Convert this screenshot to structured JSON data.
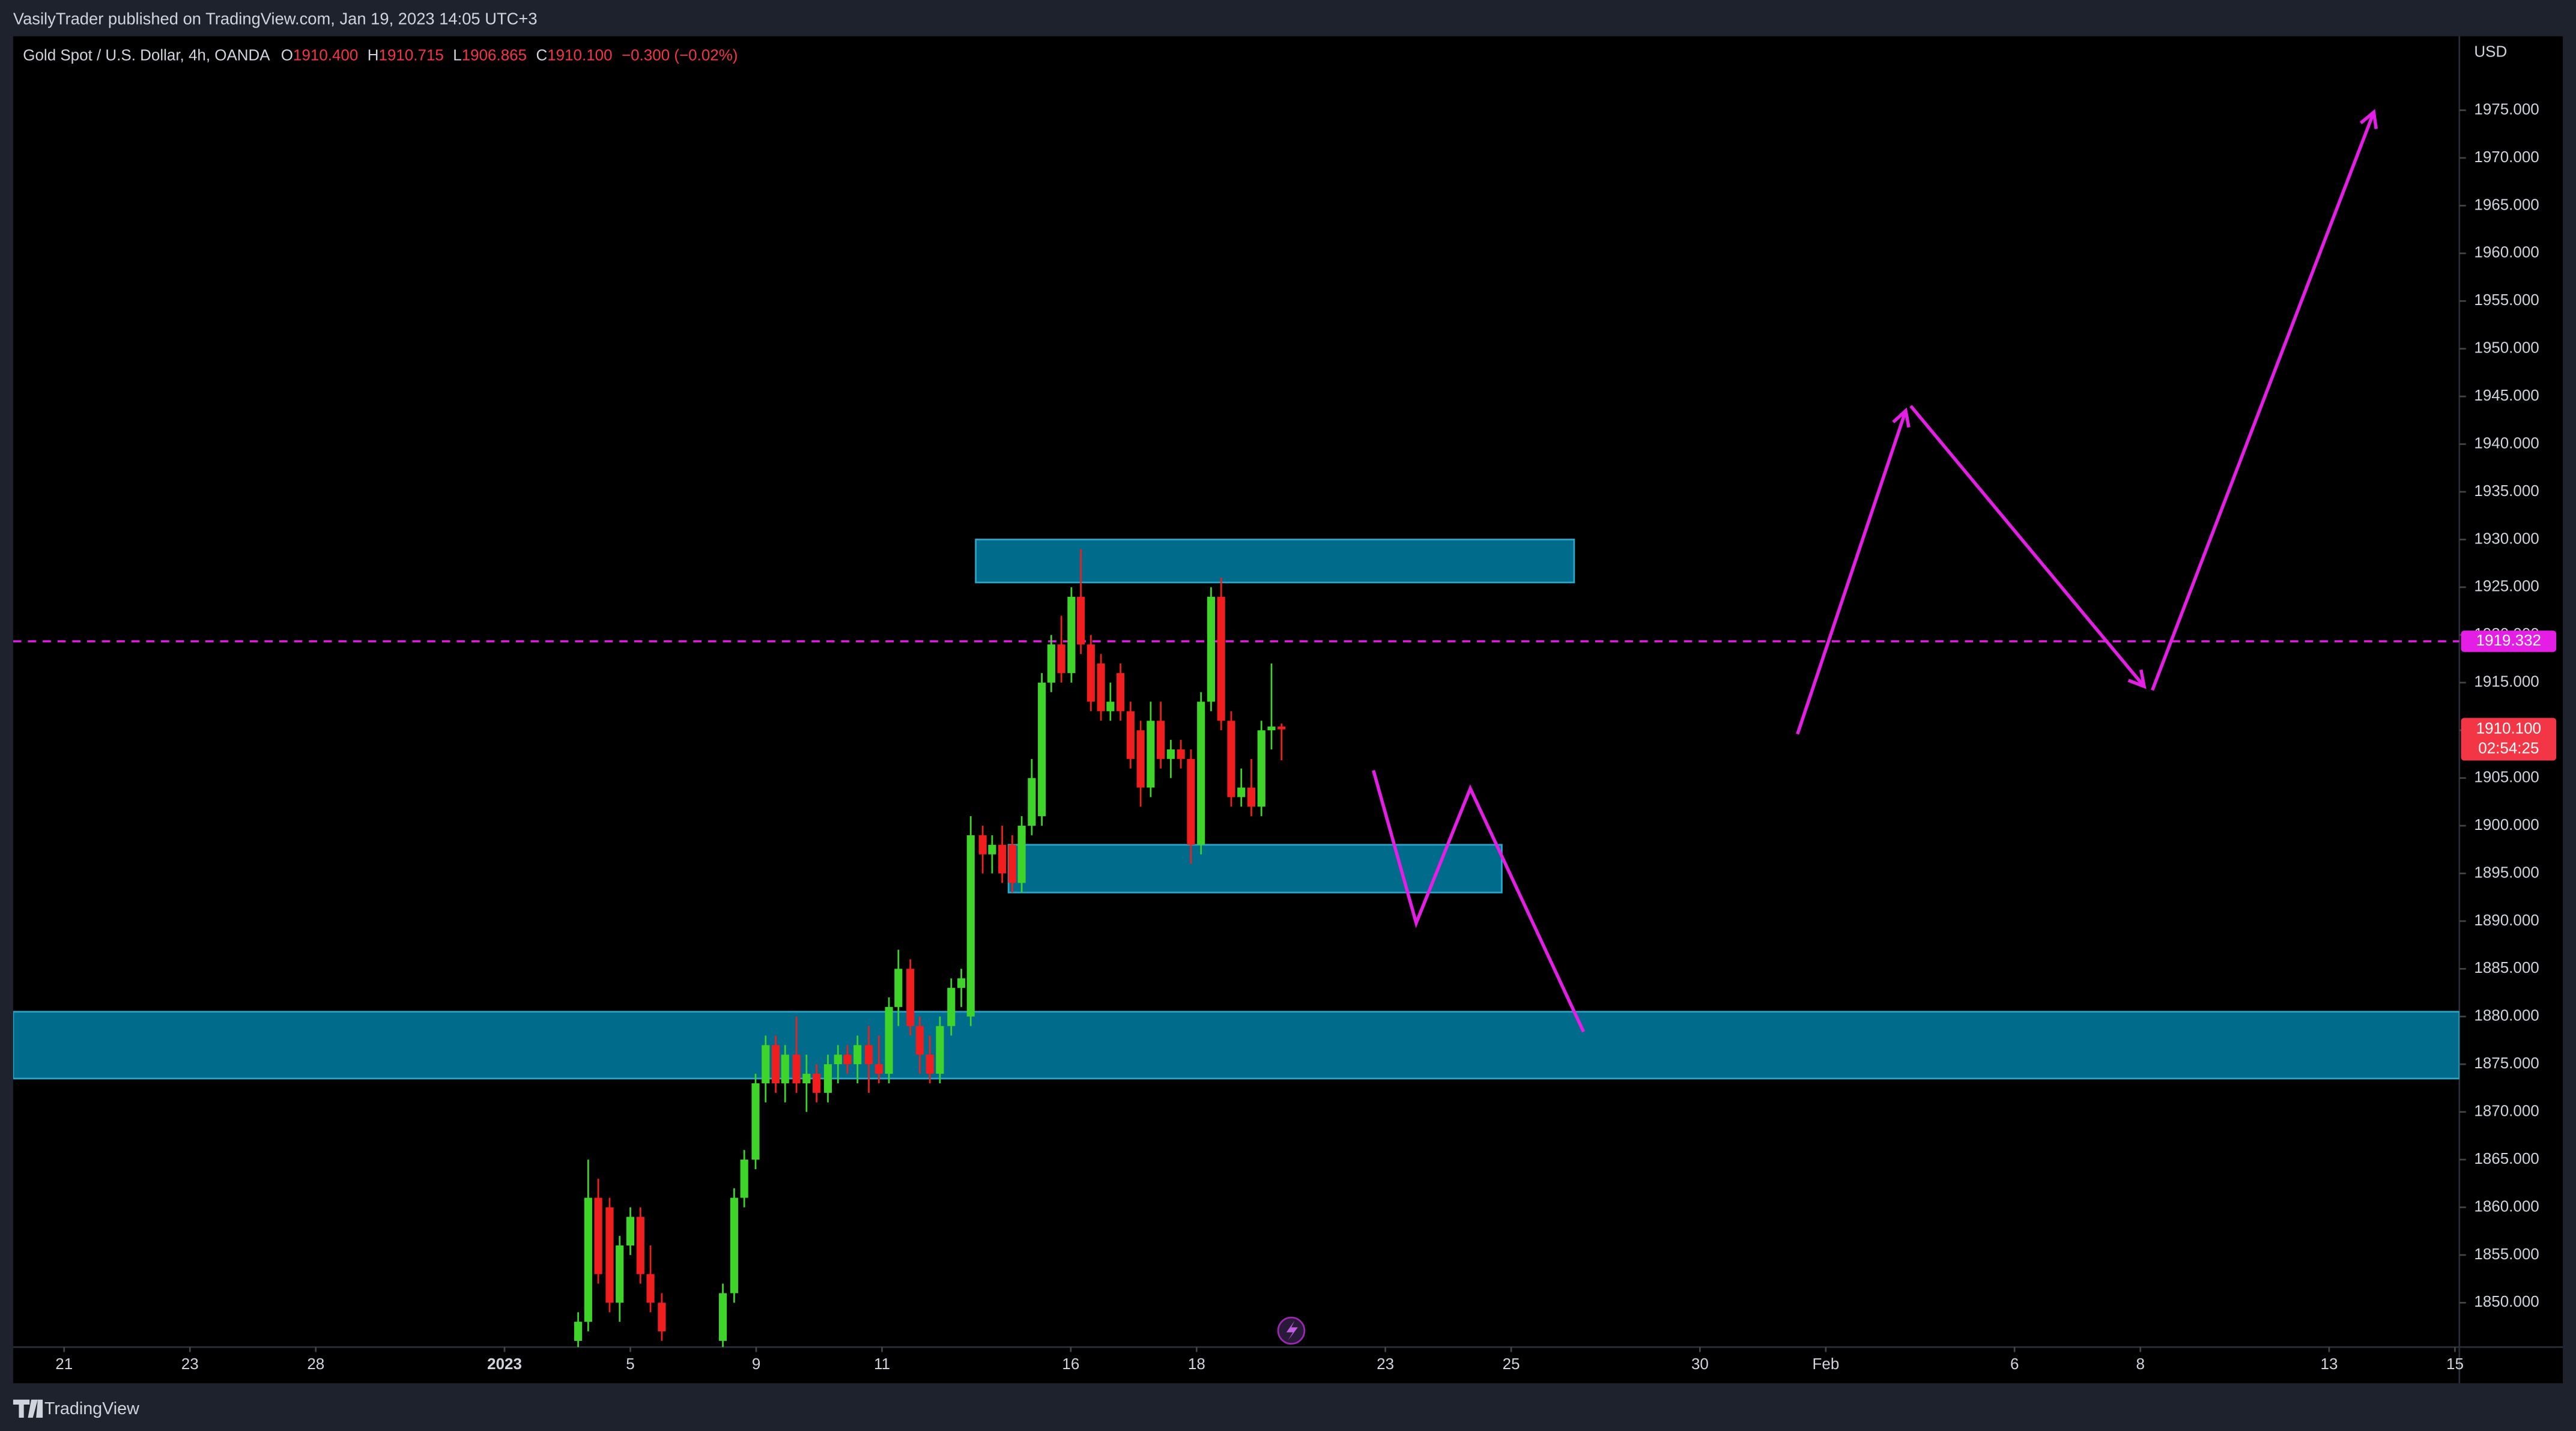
{
  "header": {
    "published": "VasilyTrader published on TradingView.com, Jan 19, 2023 14:05 UTC+3",
    "footer": "TradingView"
  },
  "chart_data": {
    "type": "candlestick",
    "symbol": "Gold Spot / U.S. Dollar, 4h, OANDA",
    "ohlc_legend": [
      {
        "key": "O",
        "value": "1910.400"
      },
      {
        "key": "H",
        "value": "1910.715"
      },
      {
        "key": "L",
        "value": "1906.865"
      },
      {
        "key": "C",
        "value": "1910.100"
      }
    ],
    "change": "−0.300 (−0.02%)",
    "currency": "USD",
    "up_color": "#3fd42a",
    "down_color": "#f01e1e",
    "xlim": [
      -0.81,
      38.07
    ],
    "xticks": [
      {
        "value": 0,
        "label": "21"
      },
      {
        "value": 2,
        "label": "23"
      },
      {
        "value": 4,
        "label": "28"
      },
      {
        "value": 7,
        "label": "2023"
      },
      {
        "value": 9,
        "label": "5"
      },
      {
        "value": 11,
        "label": "9"
      },
      {
        "value": 13,
        "label": "11"
      },
      {
        "value": 16,
        "label": "16"
      },
      {
        "value": 18,
        "label": "18"
      },
      {
        "value": 21,
        "label": "23"
      },
      {
        "value": 23,
        "label": "25"
      },
      {
        "value": 26,
        "label": "30"
      },
      {
        "value": 28,
        "label": "Feb"
      },
      {
        "value": 31,
        "label": "6"
      },
      {
        "value": 33,
        "label": "8"
      },
      {
        "value": 36,
        "label": "13"
      },
      {
        "value": 38,
        "label": "15"
      }
    ],
    "ylim": [
      1845.35,
      1982.75
    ],
    "yticks": [
      {
        "value": 1850,
        "label": "1850.000"
      },
      {
        "value": 1855,
        "label": "1855.000"
      },
      {
        "value": 1860,
        "label": "1860.000"
      },
      {
        "value": 1865,
        "label": "1865.000"
      },
      {
        "value": 1870,
        "label": "1870.000"
      },
      {
        "value": 1875,
        "label": "1875.000"
      },
      {
        "value": 1880,
        "label": "1880.000"
      },
      {
        "value": 1885,
        "label": "1885.000"
      },
      {
        "value": 1890,
        "label": "1890.000"
      },
      {
        "value": 1895,
        "label": "1895.000"
      },
      {
        "value": 1900,
        "label": "1900.000"
      },
      {
        "value": 1905,
        "label": "1905.000"
      },
      {
        "value": 1910,
        "label": "1910.000"
      },
      {
        "value": 1915,
        "label": "1915.000"
      },
      {
        "value": 1920,
        "label": "1920.000"
      },
      {
        "value": 1925,
        "label": "1925.000"
      },
      {
        "value": 1930,
        "label": "1930.000"
      },
      {
        "value": 1935,
        "label": "1935.000"
      },
      {
        "value": 1940,
        "label": "1940.000"
      },
      {
        "value": 1945,
        "label": "1945.000"
      },
      {
        "value": 1950,
        "label": "1950.000"
      },
      {
        "value": 1955,
        "label": "1955.000"
      },
      {
        "value": 1960,
        "label": "1960.000"
      },
      {
        "value": 1965,
        "label": "1965.000"
      },
      {
        "value": 1970,
        "label": "1970.000"
      },
      {
        "value": 1975,
        "label": "1975.000"
      }
    ],
    "x": [
      8.17,
      8.33,
      8.49,
      8.67,
      8.83,
      9.0,
      9.16,
      9.32,
      9.5,
      10.47,
      10.65,
      10.81,
      10.99,
      11.15,
      11.31,
      11.46,
      11.64,
      11.8,
      11.96,
      12.14,
      12.3,
      12.45,
      12.61,
      12.79,
      12.95,
      13.11,
      13.26,
      13.45,
      13.6,
      13.76,
      13.92,
      14.1,
      14.26,
      14.41,
      14.6,
      14.75,
      14.91,
      15.07,
      15.22,
      15.38,
      15.54,
      15.69,
      15.85,
      16.01,
      16.16,
      16.32,
      16.48,
      16.63,
      16.79,
      16.95,
      17.11,
      17.27,
      17.43,
      17.59,
      17.75,
      17.91,
      18.07,
      18.23,
      18.39,
      18.55,
      18.71,
      18.87,
      19.03,
      19.19,
      19.35
    ],
    "open": [
      1846,
      1848,
      1861,
      1860,
      1850,
      1856,
      1859,
      1853,
      1850,
      1846,
      1851,
      1861,
      1865,
      1873,
      1877,
      1873,
      1876,
      1873,
      1874,
      1872,
      1875,
      1876,
      1875,
      1877,
      1875,
      1874,
      1881,
      1885,
      1879,
      1876,
      1874,
      1879,
      1883,
      1880,
      1899,
      1897,
      1898,
      1898,
      1894,
      1900,
      1901,
      1915,
      1919,
      1916,
      1924,
      1919,
      1917,
      1912,
      1916,
      1912,
      1910,
      1904,
      1911,
      1907,
      1908,
      1907,
      1898,
      1913,
      1924,
      1911,
      1903,
      1904,
      1902,
      1910,
      1910.4
    ],
    "high": [
      1849,
      1865,
      1863,
      1861,
      1857,
      1860,
      1860,
      1856,
      1851,
      1852,
      1862,
      1866,
      1874,
      1878,
      1878,
      1877,
      1880,
      1876,
      1875,
      1876,
      1877,
      1877,
      1878,
      1879,
      1878,
      1882,
      1887,
      1886,
      1880,
      1878,
      1880,
      1884,
      1885,
      1901,
      1900,
      1899,
      1900,
      1899,
      1901,
      1907,
      1916,
      1920,
      1922,
      1925,
      1929,
      1920,
      1918,
      1915,
      1917,
      1913,
      1911,
      1913,
      1913,
      1909,
      1909,
      1908,
      1914,
      1925,
      1926,
      1912,
      1906,
      1907,
      1911,
      1917,
      1910.715
    ],
    "low": [
      1845,
      1847,
      1852,
      1849,
      1848,
      1855,
      1852,
      1849,
      1846,
      1845,
      1850,
      1860,
      1864,
      1871,
      1872,
      1871,
      1872,
      1870,
      1871,
      1871,
      1873,
      1874,
      1873,
      1872,
      1873,
      1873,
      1879,
      1878,
      1874,
      1873,
      1873,
      1878,
      1881,
      1879,
      1895,
      1895,
      1894,
      1893,
      1893,
      1899,
      1900,
      1914,
      1915,
      1915,
      1918,
      1912,
      1911,
      1911,
      1911,
      1906,
      1902,
      1903,
      1906,
      1905,
      1906,
      1896,
      1897,
      1912,
      1910,
      1902,
      1902,
      1901,
      1901,
      1908,
      1906.865
    ],
    "close": [
      1848,
      1861,
      1853,
      1850,
      1856,
      1859,
      1853,
      1850,
      1847,
      1851,
      1861,
      1865,
      1873,
      1877,
      1873,
      1876,
      1873,
      1874,
      1872,
      1875,
      1876,
      1875,
      1877,
      1875,
      1874,
      1881,
      1885,
      1879,
      1876,
      1874,
      1879,
      1883,
      1884,
      1899,
      1897,
      1898,
      1895,
      1894,
      1900,
      1905,
      1915,
      1919,
      1916,
      1924,
      1919,
      1913,
      1912,
      1913,
      1912,
      1907,
      1904,
      1911,
      1907,
      1908,
      1907,
      1898,
      1913,
      1924,
      1911,
      1903,
      1904,
      1902,
      1910,
      1910.4,
      1910.1
    ],
    "zones": [
      {
        "x": [
          14.49,
          24.0
        ],
        "y": [
          1925.5,
          1930
        ]
      },
      {
        "x": [
          15.01,
          22.85
        ],
        "y": [
          1893,
          1898
        ]
      },
      {
        "x": [
          -0.81,
          38.07
        ],
        "y": [
          1873.5,
          1880.5
        ]
      }
    ],
    "drawings": [
      {
        "x": [
          20.81,
          21.49,
          22.35,
          24.15
        ],
        "y": [
          1905.8,
          1889.8,
          1903.9,
          1878.4
        ],
        "arrow": false
      },
      {
        "x": [
          27.55,
          29.27
        ],
        "y": [
          1909.6,
          1943.5
        ],
        "arrow": true
      },
      {
        "x": [
          29.35,
          33.06
        ],
        "y": [
          1944.0,
          1914.6
        ],
        "arrow": true
      },
      {
        "x": [
          33.19,
          36.71
        ],
        "y": [
          1914.2,
          1974.8
        ],
        "arrow": true
      }
    ],
    "drawing_color": "#e51ee5",
    "zone_color": "#006b8a",
    "zone_border": "#2aa8cc",
    "hline": {
      "value": 1919.332
    },
    "last_price": {
      "value": 1910.1,
      "label": "1910.100"
    },
    "countdown": "02:54:25"
  }
}
